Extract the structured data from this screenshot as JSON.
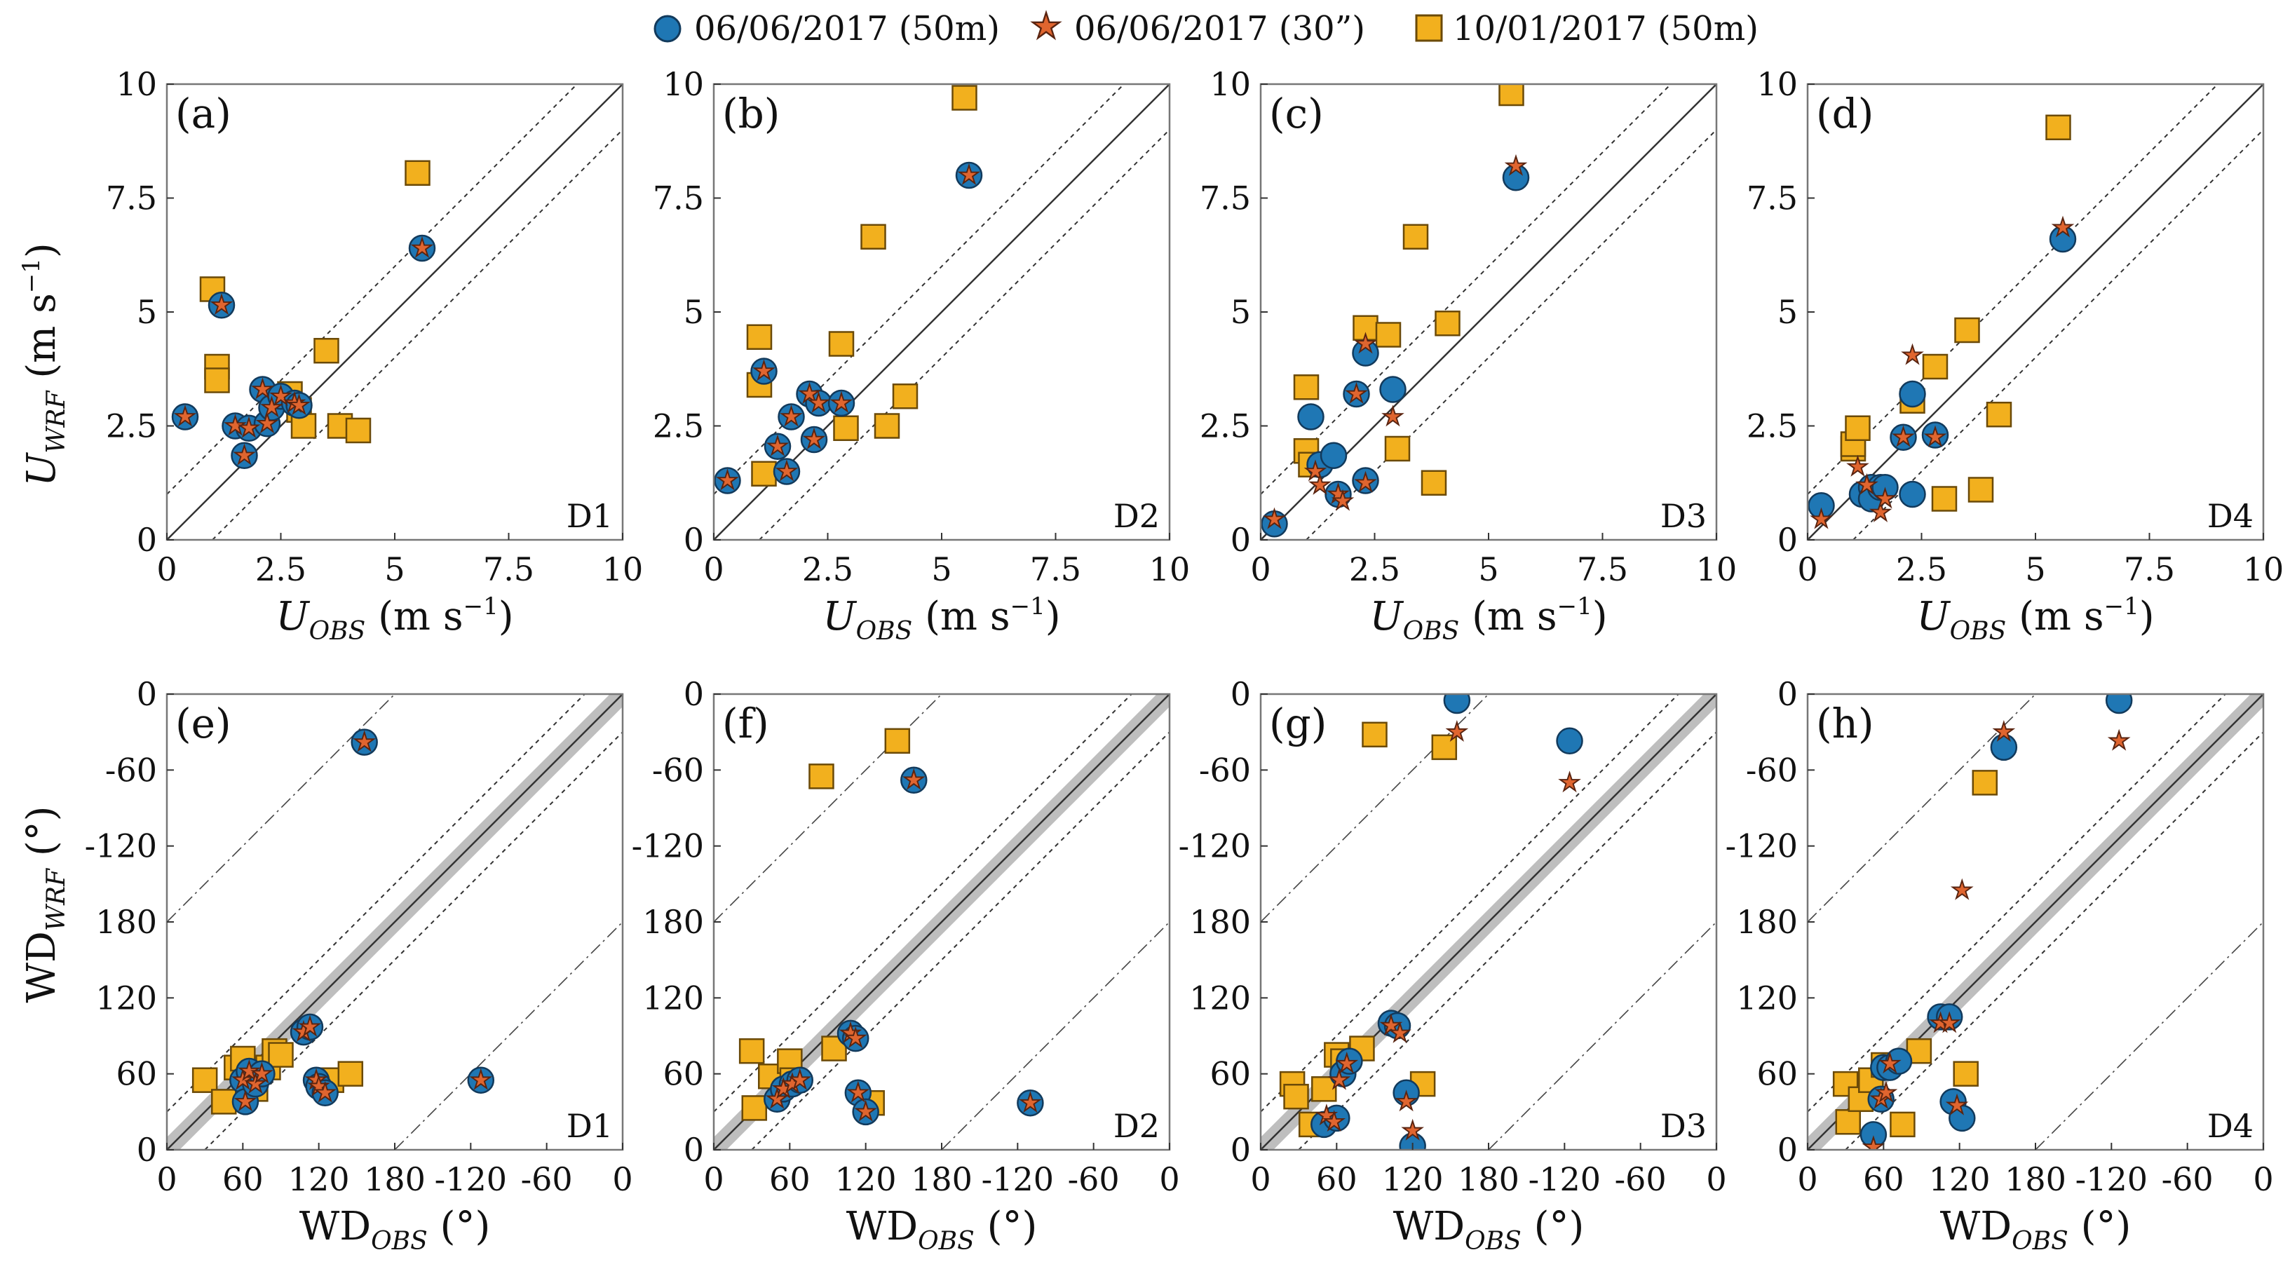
{
  "legend": [
    {
      "label": "06/06/2017 (50m)",
      "marker": "circle",
      "color": "#1f77b4"
    },
    {
      "label": "06/06/2017 (30”)",
      "marker": "star",
      "color": "#e0652f"
    },
    {
      "label": "10/01/2017 (50m)",
      "marker": "square",
      "color": "#f2b01e"
    }
  ],
  "colors": {
    "circle": "#1f77b4",
    "star": "#e0652f",
    "square": "#f2b01e",
    "band": "#a8a8a8",
    "frame": "#777777"
  },
  "axis_text": {
    "speed_xlabel_main": "U",
    "speed_xlabel_sub": "OBS",
    "speed_xlabel_unit": " (m s",
    "speed_xlabel_exp": "−1",
    "speed_xlabel_close": ")",
    "speed_ylabel_main": "U",
    "speed_ylabel_sub": "WRF",
    "speed_ylabel_unit": " (m s",
    "speed_ylabel_exp": "−1",
    "speed_ylabel_close": ")",
    "dir_xlabel_main": "WD",
    "dir_xlabel_sub": "OBS",
    "dir_xlabel_unit": " (°)",
    "dir_ylabel_main": "WD",
    "dir_ylabel_sub": "WRF",
    "dir_ylabel_unit": " (°)",
    "speed_ticks": [
      "0",
      "2.5",
      "5",
      "7.5",
      "10"
    ],
    "dir_xticks": [
      "0",
      "60",
      "120",
      "180",
      "-120",
      "-60",
      "0"
    ],
    "dir_yticks": [
      "0",
      "60",
      "120",
      "180",
      "-120",
      "-60",
      "0"
    ]
  },
  "chart_data": [
    {
      "panel": "(a)",
      "domain": "D1",
      "type": "scatter",
      "variable": "wind speed",
      "xlabel": "U_OBS (m s^-1)",
      "ylabel": "U_WRF (m s^-1)",
      "xlim": [
        0,
        10
      ],
      "ylim": [
        0,
        10
      ],
      "series": [
        {
          "name": "06/06/2017 (50m)",
          "x": [
            0.4,
            1.2,
            1.5,
            1.8,
            1.7,
            2.1,
            2.2,
            2.3,
            2.5,
            2.8,
            2.9,
            5.6
          ],
          "y": [
            2.7,
            5.15,
            2.5,
            2.45,
            1.85,
            3.3,
            2.55,
            2.9,
            3.15,
            3.0,
            2.95,
            6.4
          ]
        },
        {
          "name": "06/06/2017 (30”)",
          "x": [
            0.4,
            1.2,
            1.5,
            1.8,
            1.7,
            2.1,
            2.2,
            2.3,
            2.5,
            2.8,
            2.9,
            5.6
          ],
          "y": [
            2.7,
            5.15,
            2.5,
            2.45,
            1.85,
            3.3,
            2.55,
            2.9,
            3.15,
            3.0,
            2.95,
            6.4
          ]
        },
        {
          "name": "10/01/2017 (50m)",
          "x": [
            1.0,
            1.1,
            1.1,
            2.7,
            2.9,
            3.0,
            3.5,
            3.8,
            4.2,
            5.5
          ],
          "y": [
            5.5,
            3.8,
            3.5,
            3.2,
            2.85,
            2.5,
            4.15,
            2.5,
            2.4,
            8.05
          ]
        }
      ]
    },
    {
      "panel": "(b)",
      "domain": "D2",
      "type": "scatter",
      "variable": "wind speed",
      "xlabel": "U_OBS (m s^-1)",
      "ylabel": "U_WRF (m s^-1)",
      "xlim": [
        0,
        10
      ],
      "ylim": [
        0,
        10
      ],
      "series": [
        {
          "name": "06/06/2017 (50m)",
          "x": [
            0.3,
            1.1,
            1.4,
            1.6,
            1.7,
            2.1,
            2.2,
            2.3,
            2.8,
            5.6
          ],
          "y": [
            1.3,
            3.7,
            2.05,
            1.5,
            2.7,
            3.2,
            2.2,
            3.0,
            3.0,
            8.0
          ]
        },
        {
          "name": "06/06/2017 (30”)",
          "x": [
            0.3,
            1.1,
            1.4,
            1.6,
            1.7,
            2.1,
            2.2,
            2.3,
            2.8,
            5.6
          ],
          "y": [
            1.3,
            3.7,
            2.05,
            1.5,
            2.7,
            3.2,
            2.2,
            3.0,
            3.0,
            8.0
          ]
        },
        {
          "name": "10/01/2017 (50m)",
          "x": [
            1.0,
            1.0,
            1.1,
            2.8,
            2.9,
            3.5,
            3.8,
            4.2,
            5.5
          ],
          "y": [
            4.45,
            3.4,
            1.45,
            4.3,
            2.45,
            6.65,
            2.5,
            3.15,
            9.7
          ]
        }
      ]
    },
    {
      "panel": "(c)",
      "domain": "D3",
      "type": "scatter",
      "variable": "wind speed",
      "xlabel": "U_OBS (m s^-1)",
      "ylabel": "U_WRF (m s^-1)",
      "xlim": [
        0,
        10
      ],
      "ylim": [
        0,
        10
      ],
      "series": [
        {
          "name": "06/06/2017 (50m)",
          "x": [
            0.3,
            1.1,
            1.3,
            1.6,
            1.7,
            2.1,
            2.3,
            2.3,
            2.9,
            5.6
          ],
          "y": [
            0.35,
            2.7,
            1.65,
            1.85,
            1.0,
            3.2,
            1.3,
            4.1,
            3.3,
            7.95
          ]
        },
        {
          "name": "06/06/2017 (30”)",
          "x": [
            0.3,
            1.2,
            1.3,
            1.7,
            1.8,
            2.1,
            2.3,
            2.3,
            2.9,
            5.6
          ],
          "y": [
            0.45,
            1.5,
            1.2,
            1.0,
            0.85,
            3.2,
            1.25,
            4.3,
            2.7,
            8.2
          ]
        },
        {
          "name": "10/01/2017 (50m)",
          "x": [
            1.0,
            1.0,
            1.1,
            2.3,
            2.8,
            3.0,
            3.4,
            3.8,
            4.1,
            5.5
          ],
          "y": [
            3.35,
            1.95,
            1.65,
            4.65,
            4.5,
            2.0,
            6.65,
            1.25,
            4.75,
            9.8
          ]
        }
      ]
    },
    {
      "panel": "(d)",
      "domain": "D4",
      "type": "scatter",
      "variable": "wind speed",
      "xlabel": "U_OBS (m s^-1)",
      "ylabel": "U_WRF (m s^-1)",
      "xlim": [
        0,
        10
      ],
      "ylim": [
        0,
        10
      ],
      "series": [
        {
          "name": "06/06/2017 (50m)",
          "x": [
            0.3,
            1.2,
            1.4,
            1.4,
            1.6,
            1.7,
            2.1,
            2.3,
            2.3,
            2.8,
            5.6
          ],
          "y": [
            0.75,
            1.0,
            1.15,
            0.9,
            1.15,
            1.15,
            2.25,
            3.2,
            1.0,
            2.3,
            6.6
          ]
        },
        {
          "name": "06/06/2017 (30”)",
          "x": [
            0.3,
            1.1,
            1.3,
            1.6,
            1.7,
            2.1,
            2.3,
            2.8,
            5.6
          ],
          "y": [
            0.45,
            1.6,
            1.2,
            0.6,
            0.9,
            2.25,
            4.05,
            2.25,
            6.85
          ]
        },
        {
          "name": "10/01/2017 (50m)",
          "x": [
            1.0,
            1.0,
            1.1,
            2.3,
            2.8,
            3.0,
            3.5,
            3.8,
            4.2,
            5.5
          ],
          "y": [
            2.0,
            2.1,
            2.45,
            3.05,
            3.8,
            0.9,
            4.6,
            1.1,
            2.75,
            9.05
          ]
        }
      ]
    },
    {
      "panel": "(e)",
      "domain": "D1",
      "type": "scatter",
      "variable": "wind direction",
      "xlabel": "WD_OBS (°)",
      "ylabel": "WD_WRF (°)",
      "xlim": [
        0,
        360
      ],
      "ylim": [
        0,
        360
      ],
      "tick_values": [
        0,
        60,
        120,
        180,
        240,
        300,
        360
      ],
      "series": [
        {
          "name": "06/06/2017 (50m)",
          "x": [
            60,
            62,
            65,
            70,
            75,
            108,
            113,
            118,
            120,
            125,
            156,
            248
          ],
          "y": [
            55,
            38,
            62,
            52,
            60,
            93,
            97,
            55,
            50,
            45,
            322,
            55
          ]
        },
        {
          "name": "06/06/2017 (30”)",
          "x": [
            60,
            62,
            65,
            70,
            75,
            108,
            113,
            118,
            120,
            125,
            156,
            248
          ],
          "y": [
            55,
            38,
            62,
            52,
            60,
            93,
            97,
            55,
            50,
            45,
            322,
            55
          ]
        },
        {
          "name": "10/01/2017 (50m)",
          "x": [
            30,
            45,
            55,
            60,
            70,
            80,
            85,
            90,
            130,
            145
          ],
          "y": [
            55,
            38,
            65,
            72,
            48,
            65,
            78,
            75,
            55,
            60
          ]
        }
      ]
    },
    {
      "panel": "(f)",
      "domain": "D2",
      "type": "scatter",
      "variable": "wind direction",
      "xlabel": "WD_OBS (°)",
      "ylabel": "WD_WRF (°)",
      "xlim": [
        0,
        360
      ],
      "ylim": [
        0,
        360
      ],
      "tick_values": [
        0,
        60,
        120,
        180,
        240,
        300,
        360
      ],
      "series": [
        {
          "name": "06/06/2017 (50m)",
          "x": [
            50,
            55,
            62,
            68,
            108,
            112,
            114,
            120,
            158,
            250
          ],
          "y": [
            40,
            48,
            52,
            55,
            92,
            88,
            45,
            30,
            292,
            37
          ]
        },
        {
          "name": "06/06/2017 (30”)",
          "x": [
            50,
            55,
            62,
            68,
            108,
            112,
            114,
            120,
            158,
            250
          ],
          "y": [
            40,
            48,
            52,
            55,
            92,
            88,
            45,
            30,
            292,
            37
          ]
        },
        {
          "name": "10/01/2017 (50m)",
          "x": [
            30,
            32,
            45,
            60,
            62,
            85,
            95,
            125,
            145
          ],
          "y": [
            78,
            33,
            58,
            70,
            55,
            295,
            80,
            37,
            323
          ]
        }
      ]
    },
    {
      "panel": "(g)",
      "domain": "D3",
      "type": "scatter",
      "variable": "wind direction",
      "xlabel": "WD_OBS (°)",
      "ylabel": "WD_WRF (°)",
      "xlim": [
        0,
        360
      ],
      "ylim": [
        0,
        360
      ],
      "tick_values": [
        0,
        60,
        120,
        180,
        240,
        300,
        360
      ],
      "series": [
        {
          "name": "06/06/2017 (50m)",
          "x": [
            50,
            60,
            65,
            70,
            103,
            108,
            115,
            120,
            155,
            244
          ],
          "y": [
            20,
            25,
            60,
            70,
            100,
            98,
            45,
            3,
            355,
            323
          ]
        },
        {
          "name": "06/06/2017 (30”)",
          "x": [
            52,
            58,
            62,
            68,
            103,
            110,
            115,
            120,
            155,
            244
          ],
          "y": [
            27,
            22,
            55,
            68,
            98,
            92,
            38,
            15,
            330,
            290
          ]
        },
        {
          "name": "10/01/2017 (50m)",
          "x": [
            25,
            28,
            40,
            50,
            60,
            65,
            80,
            90,
            128,
            145
          ],
          "y": [
            52,
            42,
            20,
            48,
            75,
            70,
            80,
            328,
            52,
            318
          ]
        }
      ]
    },
    {
      "panel": "(h)",
      "domain": "D4",
      "type": "scatter",
      "variable": "wind direction",
      "xlabel": "WD_OBS (°)",
      "ylabel": "WD_WRF (°)",
      "xlim": [
        0,
        360
      ],
      "ylim": [
        0,
        360
      ],
      "tick_values": [
        0,
        60,
        120,
        180,
        240,
        300,
        360
      ],
      "series": [
        {
          "name": "06/06/2017 (50m)",
          "x": [
            52,
            58,
            60,
            65,
            72,
            105,
            112,
            115,
            122,
            155,
            246
          ],
          "y": [
            12,
            40,
            65,
            65,
            70,
            105,
            105,
            38,
            25,
            318,
            355
          ]
        },
        {
          "name": "06/06/2017 (30”)",
          "x": [
            52,
            58,
            62,
            65,
            105,
            112,
            118,
            122,
            155,
            246
          ],
          "y": [
            2,
            40,
            45,
            68,
            100,
            100,
            35,
            205,
            330,
            323
          ]
        },
        {
          "name": "10/01/2017 (50m)",
          "x": [
            30,
            32,
            42,
            50,
            60,
            75,
            88,
            125,
            140
          ],
          "y": [
            52,
            22,
            40,
            55,
            67,
            20,
            78,
            60,
            290
          ]
        }
      ]
    }
  ]
}
